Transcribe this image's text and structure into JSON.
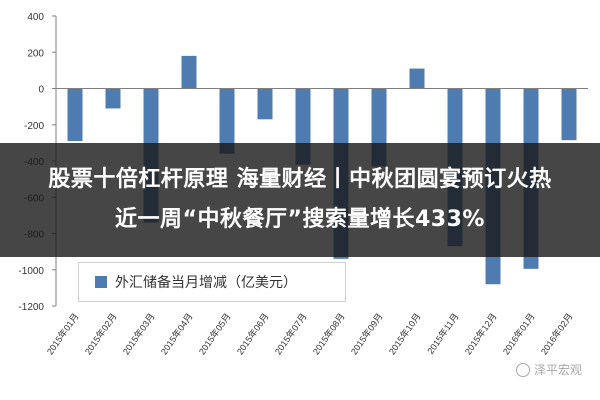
{
  "chart_data": {
    "type": "bar",
    "categories": [
      "2015年01月",
      "2015年02月",
      "2015年03月",
      "2015年04月",
      "2015年05月",
      "2015年06月",
      "2015年07月",
      "2015年08月",
      "2015年09月",
      "2015年10月",
      "2015年11月",
      "2015年12月",
      "2016年01月",
      "2016年02月"
    ],
    "series": [
      {
        "name": "外汇储备当月增减（亿美元）",
        "values": [
          -290,
          -110,
          -740,
          180,
          -360,
          -170,
          -420,
          -940,
          -430,
          110,
          -870,
          -1080,
          -995,
          -285
        ]
      }
    ],
    "ylim": [
      -1200,
      400
    ],
    "yticks": [
      400,
      200,
      0,
      -200,
      -400,
      -600,
      -800,
      -1000,
      -1200
    ],
    "grid": false,
    "legend_position": "lower-left",
    "bar_color": "#4F7CB0"
  },
  "banner": {
    "line1": "股票十倍杠杆原理 海量财经丨中秋团圆宴预订火热",
    "line2": "近一周“中秋餐厅”搜索量增长433%"
  },
  "watermark": {
    "text": "泽平宏观"
  }
}
